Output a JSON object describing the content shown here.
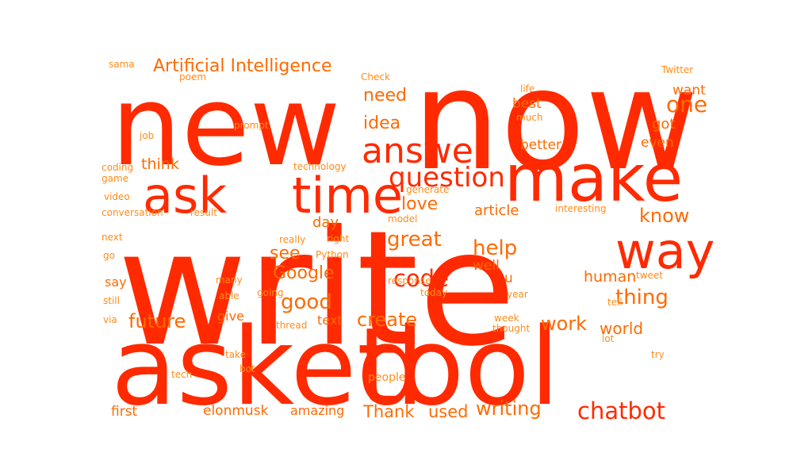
{
  "colors": {
    "background": "#ffffff",
    "primary": "#ff2a00",
    "secondary": "#ff6a00",
    "minor": "#ff8c1a"
  },
  "words": [
    {
      "text": "write",
      "tone": "primary"
    },
    {
      "text": "now",
      "tone": "primary"
    },
    {
      "text": "new",
      "tone": "primary"
    },
    {
      "text": "asked",
      "tone": "primary"
    },
    {
      "text": "tool",
      "tone": "primary"
    },
    {
      "text": "make",
      "tone": "primary"
    },
    {
      "text": "ask",
      "tone": "primary"
    },
    {
      "text": "time",
      "tone": "primary"
    },
    {
      "text": "way",
      "tone": "primary"
    },
    {
      "text": "answer",
      "tone": "primary"
    },
    {
      "text": "question",
      "tone": "primary"
    },
    {
      "text": "code",
      "tone": "primary"
    },
    {
      "text": "chatbot",
      "tone": "primary"
    },
    {
      "text": "Artificial Intelligence",
      "tone": "secondary"
    },
    {
      "text": "great",
      "tone": "secondary"
    },
    {
      "text": "help",
      "tone": "secondary"
    },
    {
      "text": "good",
      "tone": "secondary"
    },
    {
      "text": "thing",
      "tone": "secondary"
    },
    {
      "text": "know",
      "tone": "secondary"
    },
    {
      "text": "one",
      "tone": "secondary"
    },
    {
      "text": "future",
      "tone": "secondary"
    },
    {
      "text": "create",
      "tone": "secondary"
    },
    {
      "text": "work",
      "tone": "secondary"
    },
    {
      "text": "writing",
      "tone": "secondary"
    },
    {
      "text": "Google",
      "tone": "secondary"
    },
    {
      "text": "see",
      "tone": "secondary"
    },
    {
      "text": "love",
      "tone": "secondary"
    },
    {
      "text": "idea",
      "tone": "secondary"
    },
    {
      "text": "need",
      "tone": "secondary"
    },
    {
      "text": "Thank",
      "tone": "secondary"
    },
    {
      "text": "used",
      "tone": "secondary"
    },
    {
      "text": "world",
      "tone": "secondary"
    },
    {
      "text": "human",
      "tone": "secondary"
    },
    {
      "text": "think",
      "tone": "secondary"
    },
    {
      "text": "article",
      "tone": "secondary"
    },
    {
      "text": "day",
      "tone": "secondary"
    },
    {
      "text": "want",
      "tone": "secondary"
    },
    {
      "text": "got",
      "tone": "secondary"
    },
    {
      "text": "best",
      "tone": "secondary"
    },
    {
      "text": "better",
      "tone": "secondary"
    },
    {
      "text": "even",
      "tone": "secondary"
    },
    {
      "text": "well",
      "tone": "secondary"
    },
    {
      "text": "u",
      "tone": "secondary"
    },
    {
      "text": "elonmusk",
      "tone": "secondary"
    },
    {
      "text": "amazing",
      "tone": "secondary"
    },
    {
      "text": "first",
      "tone": "secondary"
    },
    {
      "text": "give",
      "tone": "secondary"
    },
    {
      "text": "text",
      "tone": "secondary"
    },
    {
      "text": "say",
      "tone": "secondary"
    },
    {
      "text": "people",
      "tone": "minor"
    },
    {
      "text": "sama",
      "tone": "minor"
    },
    {
      "text": "poem",
      "tone": "minor"
    },
    {
      "text": "Check",
      "tone": "minor"
    },
    {
      "text": "life",
      "tone": "minor"
    },
    {
      "text": "much",
      "tone": "minor"
    },
    {
      "text": "Twitter",
      "tone": "minor"
    },
    {
      "text": "prompt",
      "tone": "minor"
    },
    {
      "text": "job",
      "tone": "minor"
    },
    {
      "text": "coding",
      "tone": "minor"
    },
    {
      "text": "technology",
      "tone": "minor"
    },
    {
      "text": "game",
      "tone": "minor"
    },
    {
      "text": "generate",
      "tone": "minor"
    },
    {
      "text": "video",
      "tone": "minor"
    },
    {
      "text": "conversation",
      "tone": "minor"
    },
    {
      "text": "result",
      "tone": "minor"
    },
    {
      "text": "interesting",
      "tone": "minor"
    },
    {
      "text": "model",
      "tone": "minor"
    },
    {
      "text": "next",
      "tone": "minor"
    },
    {
      "text": "really",
      "tone": "minor"
    },
    {
      "text": "right",
      "tone": "minor"
    },
    {
      "text": "go",
      "tone": "minor"
    },
    {
      "text": "Python",
      "tone": "minor"
    },
    {
      "text": "many",
      "tone": "minor"
    },
    {
      "text": "response",
      "tone": "minor"
    },
    {
      "text": "tweet",
      "tone": "minor"
    },
    {
      "text": "still",
      "tone": "minor"
    },
    {
      "text": "able",
      "tone": "minor"
    },
    {
      "text": "going",
      "tone": "minor"
    },
    {
      "text": "today",
      "tone": "minor"
    },
    {
      "text": "year",
      "tone": "minor"
    },
    {
      "text": "tell",
      "tone": "minor"
    },
    {
      "text": "via",
      "tone": "minor"
    },
    {
      "text": "thread",
      "tone": "minor"
    },
    {
      "text": "week",
      "tone": "minor"
    },
    {
      "text": "thought",
      "tone": "minor"
    },
    {
      "text": "lot",
      "tone": "minor"
    },
    {
      "text": "take",
      "tone": "minor"
    },
    {
      "text": "try",
      "tone": "minor"
    },
    {
      "text": "tech",
      "tone": "minor"
    },
    {
      "text": "bot",
      "tone": "minor"
    }
  ]
}
